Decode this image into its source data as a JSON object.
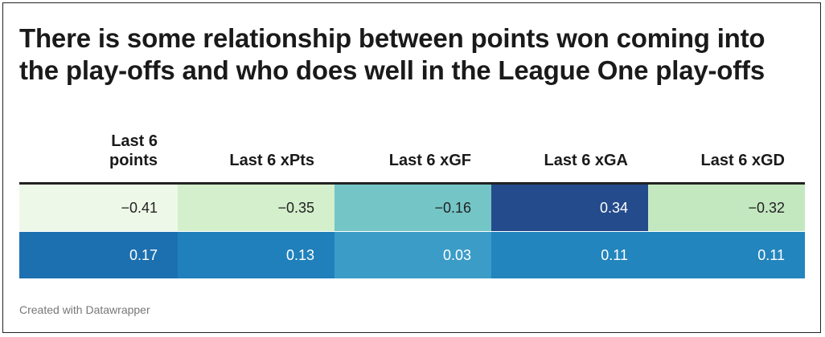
{
  "chart_data": {
    "type": "table",
    "title": "There is some relationship between points won coming into the play-offs and who does well in the League One play-offs",
    "columns": [
      "Last 6 points",
      "Last 6 xPts",
      "Last 6 xGF",
      "Last 6 xGA",
      "Last 6 xGD"
    ],
    "rows": [
      {
        "cells": [
          "−0.41",
          "−0.35",
          "−0.16",
          "0.34",
          "−0.32"
        ],
        "values": [
          -0.41,
          -0.35,
          -0.16,
          0.34,
          -0.32
        ],
        "colors": [
          "#eef8e8",
          "#d3efcb",
          "#74c5c6",
          "#244b8c",
          "#c3e8c0"
        ]
      },
      {
        "cells": [
          "0.17",
          "0.13",
          "0.03",
          "0.11",
          "0.11"
        ],
        "values": [
          0.17,
          0.13,
          0.03,
          0.11,
          0.11
        ],
        "colors": [
          "#1d70b0",
          "#2080bb",
          "#3b9cc8",
          "#2385bd",
          "#2385bd"
        ]
      }
    ]
  },
  "footer": "Created with Datawrapper"
}
